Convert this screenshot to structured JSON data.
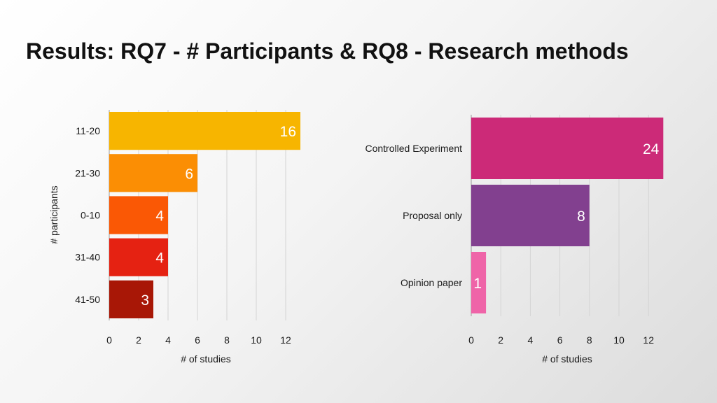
{
  "slide": {
    "title": "Results: RQ7 - # Participants & RQ8 - Research methods"
  },
  "chart_data": [
    {
      "type": "bar",
      "orientation": "horizontal",
      "categories": [
        "11-20",
        "21-30",
        "0-10",
        "31-40",
        "41-50"
      ],
      "values": [
        16,
        6,
        4,
        4,
        3
      ],
      "data_labels": [
        "16",
        "6",
        "4",
        "4",
        "3"
      ],
      "colors": [
        "#f7b500",
        "#fb8e04",
        "#fa5805",
        "#e52212",
        "#a81706"
      ],
      "xlabel": "# of studies",
      "ylabel": "# participants",
      "xticks": [
        0,
        2,
        4,
        6,
        8,
        10,
        12
      ],
      "xlim": [
        0,
        13
      ],
      "grid": true,
      "legend": "none"
    },
    {
      "type": "bar",
      "orientation": "horizontal",
      "categories": [
        "Controlled Experiment",
        "Proposal only",
        "Opinion paper"
      ],
      "values": [
        24,
        8,
        1
      ],
      "data_labels": [
        "24",
        "8",
        "1"
      ],
      "colors": [
        "#cc2a78",
        "#82408f",
        "#ef64a8"
      ],
      "xlabel": "# of studies",
      "ylabel": "",
      "xticks": [
        0,
        2,
        4,
        6,
        8,
        10,
        12
      ],
      "xlim": [
        0,
        13
      ],
      "grid": true,
      "legend": "none"
    }
  ]
}
